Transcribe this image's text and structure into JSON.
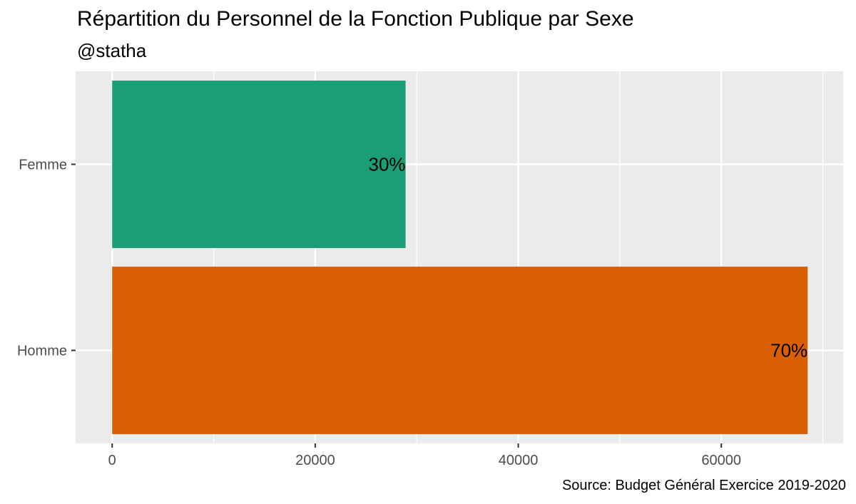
{
  "chart_data": {
    "type": "bar",
    "orientation": "horizontal",
    "title": "Répartition du Personnel de la Fonction Publique par Sexe",
    "subtitle": "@statha",
    "caption": "Source: Budget Général Exercice 2019-2020",
    "categories": [
      "Homme",
      "Femme"
    ],
    "values": [
      68500,
      28900
    ],
    "data_labels": [
      "70%",
      "30%"
    ],
    "colors": [
      "#D95F02",
      "#1B9E77"
    ],
    "xlim": [
      -3600,
      72000
    ],
    "x_ticks": [
      0,
      20000,
      40000,
      60000
    ],
    "x_tick_labels": [
      "0",
      "20000",
      "40000",
      "60000"
    ],
    "x_minor_ticks": [
      10000,
      30000,
      50000,
      70000
    ],
    "grid": true,
    "panel_color": "#EBEBEB",
    "legend": "none"
  }
}
